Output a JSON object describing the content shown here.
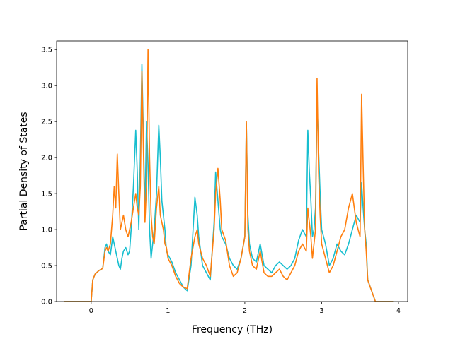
{
  "chart_data": {
    "type": "line",
    "title": "",
    "xlabel": "Frequency (THz)",
    "ylabel": "Partial Density of States",
    "xlim": [
      -0.45,
      4.12
    ],
    "ylim": [
      0.0,
      3.62
    ],
    "xticks": [
      0,
      1,
      2,
      3,
      4
    ],
    "yticks": [
      0.0,
      0.5,
      1.0,
      1.5,
      2.0,
      2.5,
      3.0,
      3.5
    ],
    "grid": false,
    "legend": "none",
    "series": [
      {
        "color": "#17becf",
        "x": [
          -0.35,
          0.0,
          0.02,
          0.05,
          0.1,
          0.15,
          0.18,
          0.2,
          0.22,
          0.25,
          0.28,
          0.3,
          0.32,
          0.34,
          0.36,
          0.38,
          0.4,
          0.42,
          0.45,
          0.48,
          0.5,
          0.52,
          0.55,
          0.58,
          0.6,
          0.62,
          0.64,
          0.66,
          0.68,
          0.7,
          0.72,
          0.74,
          0.76,
          0.78,
          0.8,
          0.82,
          0.85,
          0.88,
          0.9,
          0.92,
          0.94,
          0.96,
          0.98,
          1.0,
          1.05,
          1.1,
          1.15,
          1.2,
          1.25,
          1.3,
          1.35,
          1.38,
          1.4,
          1.45,
          1.5,
          1.55,
          1.6,
          1.62,
          1.65,
          1.68,
          1.7,
          1.75,
          1.8,
          1.85,
          1.9,
          1.95,
          2.0,
          2.02,
          2.04,
          2.06,
          2.1,
          2.15,
          2.2,
          2.25,
          2.3,
          2.35,
          2.4,
          2.45,
          2.5,
          2.55,
          2.6,
          2.65,
          2.7,
          2.75,
          2.8,
          2.82,
          2.84,
          2.86,
          2.88,
          2.9,
          2.92,
          2.94,
          2.96,
          2.98,
          3.0,
          3.05,
          3.1,
          3.15,
          3.2,
          3.25,
          3.3,
          3.35,
          3.4,
          3.45,
          3.5,
          3.52,
          3.54,
          3.56,
          3.58,
          3.6,
          3.7,
          3.8,
          3.93
        ],
        "y": [
          0.0,
          0.0,
          0.3,
          0.38,
          0.43,
          0.46,
          0.75,
          0.8,
          0.7,
          0.65,
          0.9,
          0.8,
          0.7,
          0.6,
          0.5,
          0.45,
          0.6,
          0.7,
          0.75,
          0.65,
          0.7,
          1.0,
          1.6,
          2.38,
          1.8,
          1.0,
          2.0,
          3.3,
          2.3,
          1.2,
          2.5,
          1.9,
          1.0,
          0.6,
          0.8,
          1.0,
          1.5,
          2.45,
          2.0,
          1.4,
          1.2,
          1.0,
          0.7,
          0.65,
          0.55,
          0.4,
          0.3,
          0.2,
          0.15,
          0.5,
          1.45,
          1.2,
          0.9,
          0.5,
          0.4,
          0.3,
          1.1,
          1.8,
          1.4,
          1.0,
          0.9,
          0.8,
          0.6,
          0.5,
          0.45,
          0.6,
          0.9,
          2.48,
          1.2,
          0.8,
          0.6,
          0.55,
          0.8,
          0.5,
          0.45,
          0.4,
          0.5,
          0.55,
          0.5,
          0.45,
          0.5,
          0.6,
          0.85,
          1.0,
          0.9,
          2.38,
          1.8,
          1.4,
          0.9,
          1.0,
          1.3,
          2.8,
          2.1,
          1.5,
          1.0,
          0.8,
          0.5,
          0.6,
          0.8,
          0.7,
          0.65,
          0.8,
          1.0,
          1.2,
          1.1,
          1.65,
          1.3,
          1.0,
          0.8,
          0.3,
          0.0,
          0.0,
          0.0
        ]
      },
      {
        "color": "#ff7f0e",
        "x": [
          -0.35,
          0.0,
          0.02,
          0.05,
          0.1,
          0.15,
          0.18,
          0.2,
          0.22,
          0.25,
          0.28,
          0.3,
          0.32,
          0.34,
          0.36,
          0.38,
          0.4,
          0.42,
          0.45,
          0.48,
          0.5,
          0.52,
          0.55,
          0.58,
          0.6,
          0.62,
          0.64,
          0.66,
          0.68,
          0.7,
          0.72,
          0.74,
          0.76,
          0.78,
          0.8,
          0.82,
          0.85,
          0.88,
          0.9,
          0.92,
          0.94,
          0.96,
          0.98,
          1.0,
          1.05,
          1.1,
          1.15,
          1.2,
          1.25,
          1.3,
          1.35,
          1.38,
          1.4,
          1.45,
          1.5,
          1.55,
          1.6,
          1.62,
          1.65,
          1.68,
          1.7,
          1.75,
          1.8,
          1.85,
          1.9,
          1.95,
          2.0,
          2.02,
          2.04,
          2.06,
          2.1,
          2.15,
          2.2,
          2.25,
          2.3,
          2.35,
          2.4,
          2.45,
          2.5,
          2.55,
          2.6,
          2.65,
          2.7,
          2.75,
          2.8,
          2.82,
          2.84,
          2.86,
          2.88,
          2.9,
          2.92,
          2.94,
          2.96,
          2.98,
          3.0,
          3.05,
          3.1,
          3.15,
          3.2,
          3.25,
          3.3,
          3.35,
          3.4,
          3.45,
          3.5,
          3.52,
          3.54,
          3.56,
          3.58,
          3.6,
          3.7,
          3.8,
          3.93
        ],
        "y": [
          0.0,
          0.0,
          0.3,
          0.38,
          0.43,
          0.46,
          0.7,
          0.75,
          0.7,
          0.8,
          1.2,
          1.6,
          1.3,
          2.05,
          1.5,
          1.0,
          1.1,
          1.2,
          1.0,
          0.9,
          1.0,
          1.1,
          1.3,
          1.5,
          1.3,
          1.2,
          1.6,
          3.2,
          2.1,
          1.1,
          1.6,
          3.5,
          2.0,
          1.2,
          0.9,
          0.8,
          1.3,
          1.6,
          1.2,
          1.1,
          1.0,
          0.8,
          0.75,
          0.6,
          0.5,
          0.35,
          0.25,
          0.2,
          0.18,
          0.6,
          0.9,
          1.0,
          0.8,
          0.6,
          0.5,
          0.35,
          1.0,
          1.5,
          1.85,
          1.4,
          1.0,
          0.85,
          0.5,
          0.35,
          0.4,
          0.6,
          0.9,
          2.5,
          1.0,
          0.7,
          0.5,
          0.45,
          0.7,
          0.4,
          0.35,
          0.35,
          0.4,
          0.45,
          0.35,
          0.3,
          0.4,
          0.5,
          0.7,
          0.8,
          0.7,
          1.3,
          1.1,
          0.9,
          0.6,
          0.8,
          1.0,
          3.1,
          1.8,
          1.2,
          0.8,
          0.6,
          0.4,
          0.5,
          0.7,
          0.9,
          1.0,
          1.3,
          1.5,
          1.1,
          0.9,
          2.88,
          1.9,
          1.0,
          0.7,
          0.3,
          0.0,
          0.0,
          0.0
        ]
      }
    ]
  }
}
